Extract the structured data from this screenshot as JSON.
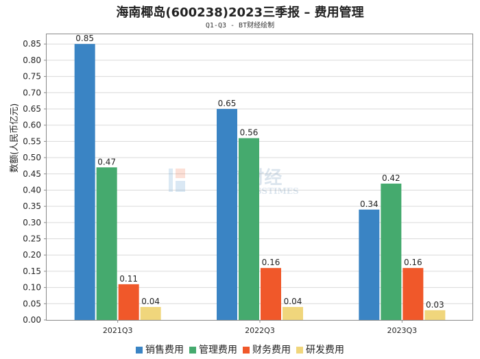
{
  "chart_data": {
    "type": "bar",
    "title": "海南椰岛(600238)2023三季报 – 费用管理",
    "subtitle": "Q1-Q3 - BT财经绘制",
    "ylabel": "数额(人民币亿元)",
    "xlabel": "",
    "categories": [
      "2021Q3",
      "2022Q3",
      "2023Q3"
    ],
    "ylim": [
      0,
      0.88
    ],
    "yticks": [
      "0.00",
      "0.05",
      "0.10",
      "0.15",
      "0.20",
      "0.25",
      "0.30",
      "0.35",
      "0.40",
      "0.45",
      "0.50",
      "0.55",
      "0.60",
      "0.65",
      "0.70",
      "0.75",
      "0.80",
      "0.85"
    ],
    "grid": true,
    "legend_position": "bottom",
    "series": [
      {
        "name": "销售费用",
        "color": "#3a84c4",
        "values": [
          0.85,
          0.65,
          0.34
        ],
        "labels": [
          "0.85",
          "0.65",
          "0.34"
        ]
      },
      {
        "name": "管理费用",
        "color": "#45aa6e",
        "values": [
          0.47,
          0.56,
          0.42
        ],
        "labels": [
          "0.47",
          "0.56",
          "0.42"
        ]
      },
      {
        "name": "财务费用",
        "color": "#f0582a",
        "values": [
          0.11,
          0.16,
          0.16
        ],
        "labels": [
          "0.11",
          "0.16",
          "0.16"
        ]
      },
      {
        "name": "研发费用",
        "color": "#f0d67c",
        "values": [
          0.04,
          0.04,
          0.03
        ],
        "labels": [
          "0.04",
          "0.04",
          "0.03"
        ]
      }
    ],
    "watermark": "BT财经 BUSINESSTIMES"
  }
}
